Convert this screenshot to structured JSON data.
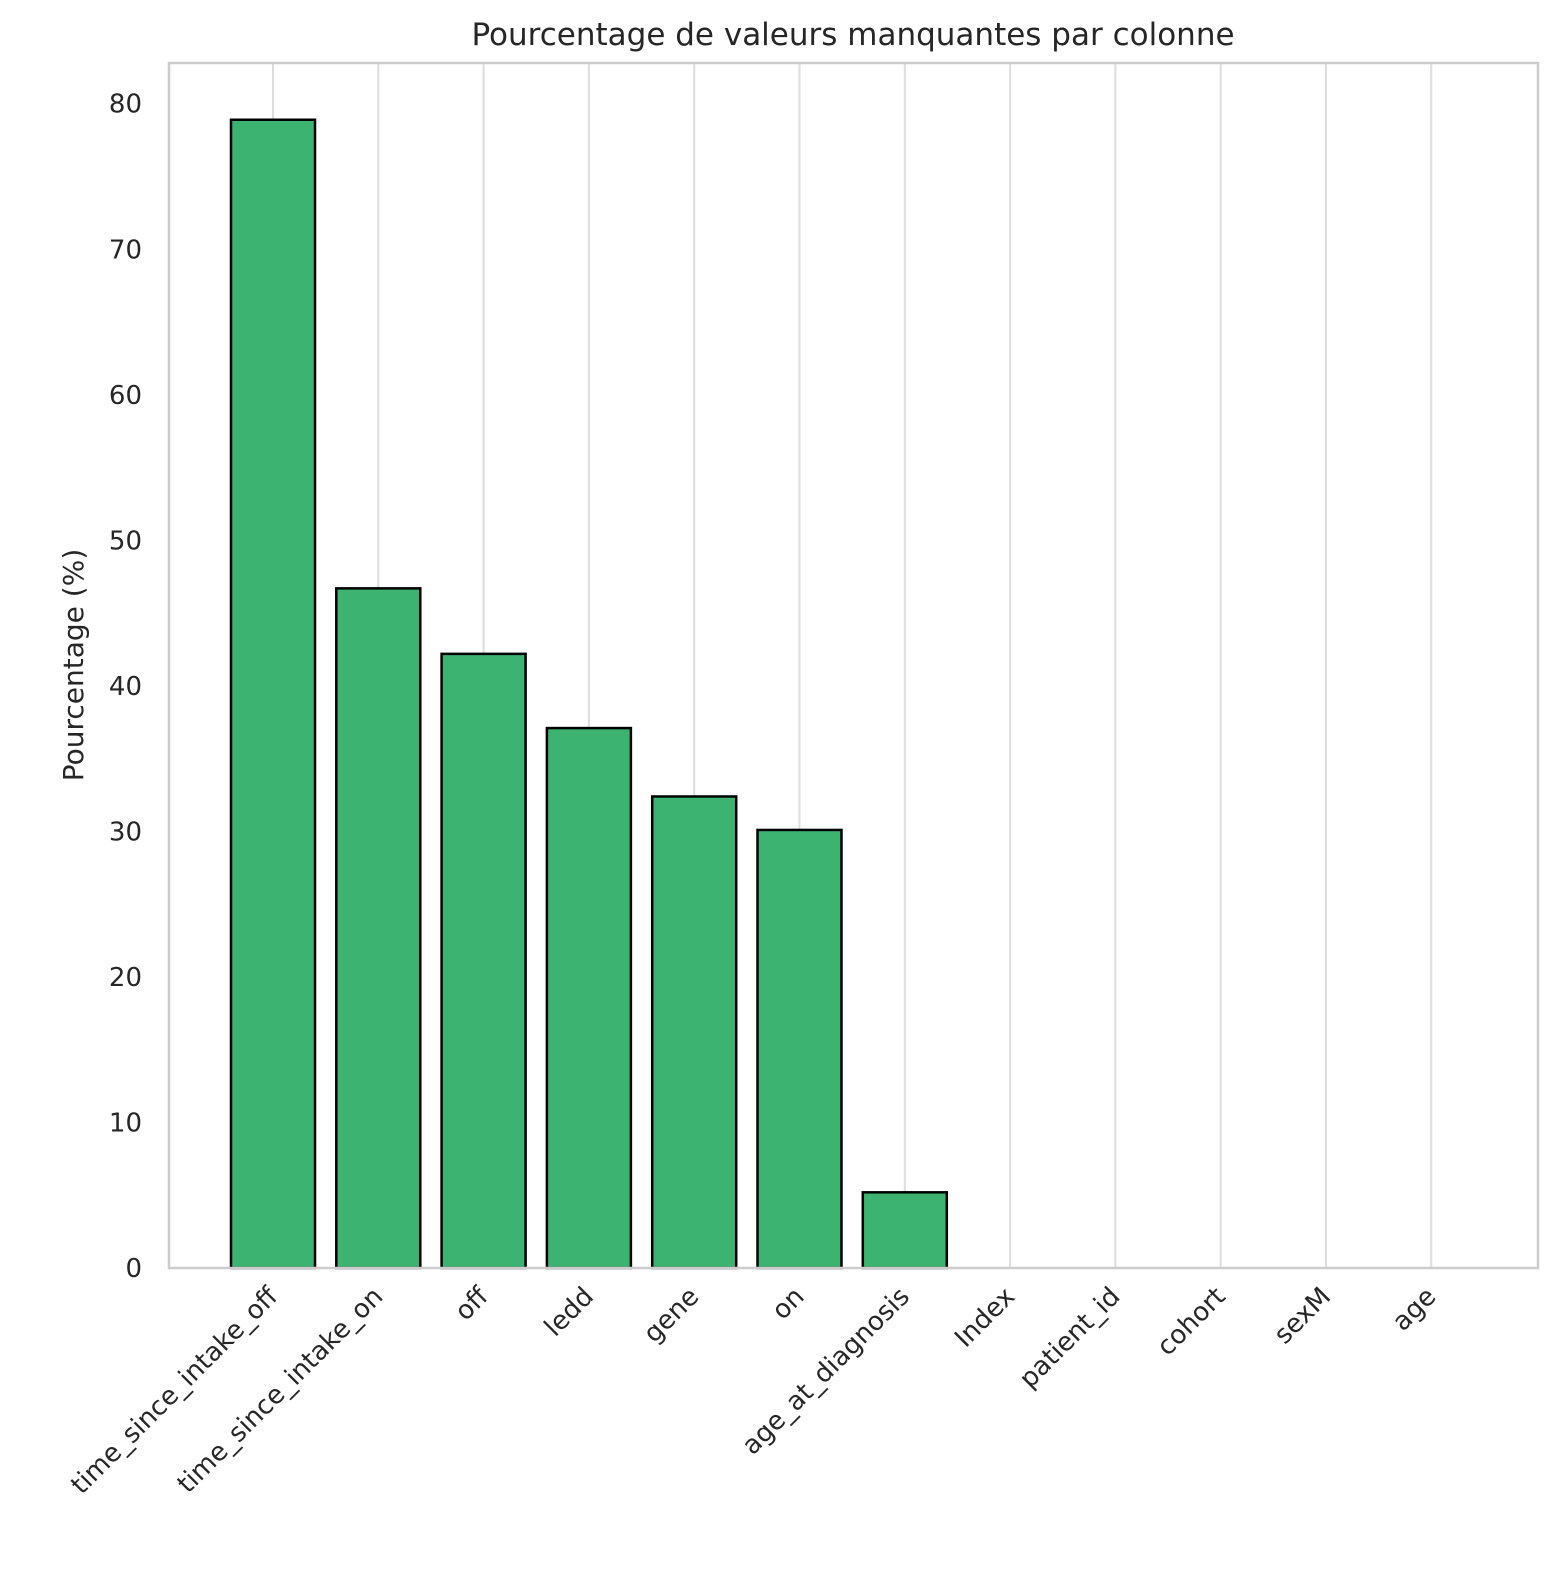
{
  "chart_data": {
    "type": "bar",
    "title": "Pourcentage de valeurs manquantes par colonne",
    "xlabel": "",
    "ylabel": "Pourcentage (%)",
    "categories": [
      "time_since_intake_off",
      "time_since_intake_on",
      "off",
      "ledd",
      "gene",
      "on",
      "age_at_diagnosis",
      "Index",
      "patient_id",
      "cohort",
      "sexM",
      "age"
    ],
    "values": [
      78.9,
      46.7,
      42.2,
      37.1,
      32.4,
      30.1,
      5.2,
      0,
      0,
      0,
      0,
      0
    ],
    "ylim": [
      0,
      82.8
    ],
    "yticks": [
      "0",
      "10",
      "20",
      "30",
      "40",
      "50",
      "60",
      "70",
      "80"
    ],
    "grid": "vertical",
    "bar_color": "#3cb371",
    "edge_color": "#000000"
  }
}
